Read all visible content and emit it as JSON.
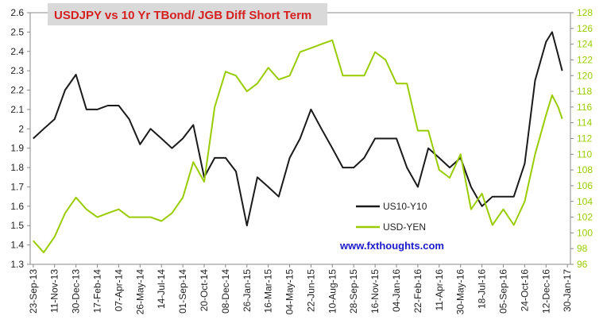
{
  "chart_data": {
    "type": "line",
    "title": "USDJPY vs 10 Yr TBond/ JGB Diff Short Term",
    "annotation": "www.fxthoughts.com",
    "x": [
      "23-Sep-13",
      "17-Oct-13",
      "11-Nov-13",
      "05-Dec-13",
      "30-Dec-13",
      "23-Jan-14",
      "17-Feb-14",
      "13-Mar-14",
      "07-Apr-14",
      "01-May-14",
      "26-May-14",
      "19-Jun-14",
      "14-Jul-14",
      "07-Aug-14",
      "01-Sep-14",
      "25-Sep-14",
      "20-Oct-14",
      "13-Nov-14",
      "08-Dec-14",
      "01-Jan-15",
      "26-Jan-15",
      "19-Feb-15",
      "16-Mar-15",
      "09-Apr-15",
      "04-May-15",
      "28-May-15",
      "22-Jun-15",
      "16-Jul-15",
      "10-Aug-15",
      "03-Sep-15",
      "28-Sep-15",
      "22-Oct-15",
      "16-Nov-15",
      "10-Dec-15",
      "04-Jan-16",
      "28-Jan-16",
      "22-Feb-16",
      "17-Mar-16",
      "11-Apr-16",
      "05-May-16",
      "30-May-16",
      "23-Jun-16",
      "18-Jul-16",
      "11-Aug-16",
      "05-Sep-16",
      "29-Sep-16",
      "24-Oct-16",
      "17-Nov-16",
      "12-Dec-16",
      "26-Dec-16",
      "09-Jan-17",
      "18-Jan-17"
    ],
    "series": [
      {
        "name": "US10-Y10",
        "color": "#1a1a1a",
        "axis": "y",
        "values": [
          1.95,
          2.0,
          2.05,
          2.2,
          2.28,
          2.1,
          2.1,
          2.12,
          2.12,
          2.05,
          1.92,
          2.0,
          1.95,
          1.9,
          1.95,
          2.02,
          1.75,
          1.85,
          1.85,
          1.78,
          1.5,
          1.75,
          1.7,
          1.65,
          1.85,
          1.95,
          2.1,
          2.0,
          1.9,
          1.8,
          1.8,
          1.85,
          1.95,
          1.95,
          1.95,
          1.8,
          1.7,
          1.9,
          1.85,
          1.8,
          1.85,
          1.7,
          1.6,
          1.65,
          1.65,
          1.65,
          1.82,
          2.25,
          2.45,
          2.5,
          2.38,
          2.3
        ]
      },
      {
        "name": "USD-YEN",
        "color": "#99cc00",
        "axis": "y2",
        "values": [
          99,
          97.5,
          99.5,
          102.5,
          104.5,
          103,
          102,
          102.5,
          103,
          102,
          102,
          102,
          101.5,
          102.5,
          104.5,
          109,
          106.5,
          116,
          120.5,
          120,
          118,
          119,
          121,
          119.5,
          120,
          123,
          123.5,
          124,
          124.5,
          120,
          120,
          120,
          123,
          122,
          119,
          119,
          113,
          113,
          108,
          107,
          110,
          103,
          105,
          101,
          103,
          101,
          104,
          110,
          115,
          117.5,
          116,
          114.5
        ]
      }
    ],
    "xlim": [
      "16-Sep-13",
      "06-Feb-17"
    ],
    "xticks": [
      "23-Sep-13",
      "11-Nov-13",
      "30-Dec-13",
      "17-Feb-14",
      "07-Apr-14",
      "26-May-14",
      "14-Jul-14",
      "01-Sep-14",
      "20-Oct-14",
      "08-Dec-14",
      "26-Jan-15",
      "16-Mar-15",
      "04-May-15",
      "22-Jun-15",
      "10-Aug-15",
      "28-Sep-15",
      "16-Nov-15",
      "04-Jan-16",
      "22-Feb-16",
      "11-Apr-16",
      "30-May-16",
      "18-Jul-16",
      "05-Sep-16",
      "24-Oct-16",
      "12-Dec-16",
      "30-Jan-17"
    ],
    "ylim": [
      1.3,
      2.6
    ],
    "yticks": [
      1.3,
      1.4,
      1.5,
      1.6,
      1.7,
      1.8,
      1.9,
      2,
      2.1,
      2.2,
      2.3,
      2.4,
      2.5,
      2.6
    ],
    "y2lim": [
      96,
      128
    ],
    "y2ticks": [
      96,
      98,
      100,
      102,
      104,
      106,
      108,
      110,
      112,
      114,
      116,
      118,
      120,
      122,
      124,
      126,
      128
    ],
    "y2color": "#99cc00",
    "grid": false
  }
}
